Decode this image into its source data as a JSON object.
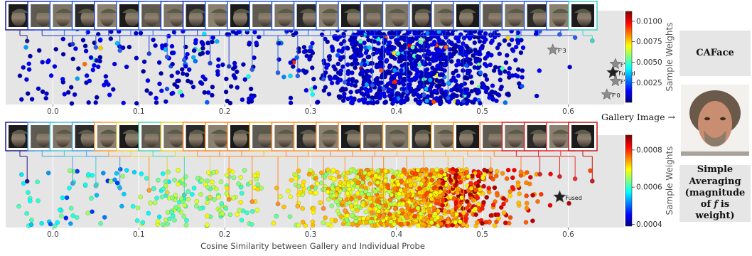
{
  "figure": {
    "xlabel": "Cosine Similarity between Gallery and Individual Probe",
    "gallery_caption": "Gallery Image →",
    "methods": [
      {
        "label": "CAFace"
      },
      {
        "label": "Simple Averaging (magnitude of 𝑓 is weight)"
      }
    ],
    "colormap": "jet"
  },
  "chart_data": [
    {
      "type": "scatter",
      "method": "CAFace",
      "xlim": [
        -0.055,
        0.665
      ],
      "xticks": [
        "0.0",
        "0.1",
        "0.2",
        "0.3",
        "0.4",
        "0.5",
        "0.6"
      ],
      "colorbar": {
        "label": "Sample Weights",
        "range": [
          0.0001,
          0.0112
        ],
        "ticks": [
          "0.0025",
          "0.0050",
          "0.0075",
          "0.0100"
        ]
      },
      "markers": [
        {
          "label": "F'3",
          "x": 0.582
        },
        {
          "label": "F'2",
          "x": 0.655
        },
        {
          "label": "Fused",
          "x": 0.652
        },
        {
          "label": "F'1",
          "x": 0.655
        },
        {
          "label": "F'0",
          "x": 0.645
        }
      ],
      "thumbnail_similarity": [
        -0.03,
        0.023,
        0.05,
        0.078,
        0.112,
        0.133,
        0.153,
        0.183,
        0.205,
        0.232,
        0.262,
        0.285,
        0.315,
        0.34,
        0.372,
        0.385,
        0.412,
        0.432,
        0.46,
        0.478,
        0.51,
        0.545,
        0.567,
        0.59,
        0.608,
        0.628
      ],
      "n_points": 1400
    },
    {
      "type": "scatter",
      "method": "Simple Averaging",
      "xlim": [
        -0.055,
        0.665
      ],
      "xticks": [
        "0.0",
        "0.1",
        "0.2",
        "0.3",
        "0.4",
        "0.5",
        "0.6"
      ],
      "colorbar": {
        "label": "Sample Weights",
        "range": [
          0.00039,
          0.00088
        ],
        "ticks": [
          "0.0004",
          "0.0006",
          "0.0008"
        ]
      },
      "markers": [
        {
          "label": "Fused",
          "x": 0.59
        }
      ],
      "thumbnail_similarity": [
        -0.03,
        0.023,
        0.05,
        0.078,
        0.112,
        0.133,
        0.153,
        0.183,
        0.205,
        0.232,
        0.262,
        0.285,
        0.315,
        0.34,
        0.372,
        0.385,
        0.412,
        0.432,
        0.46,
        0.478,
        0.51,
        0.545,
        0.567,
        0.59,
        0.608,
        0.628
      ],
      "n_points": 1400
    }
  ]
}
